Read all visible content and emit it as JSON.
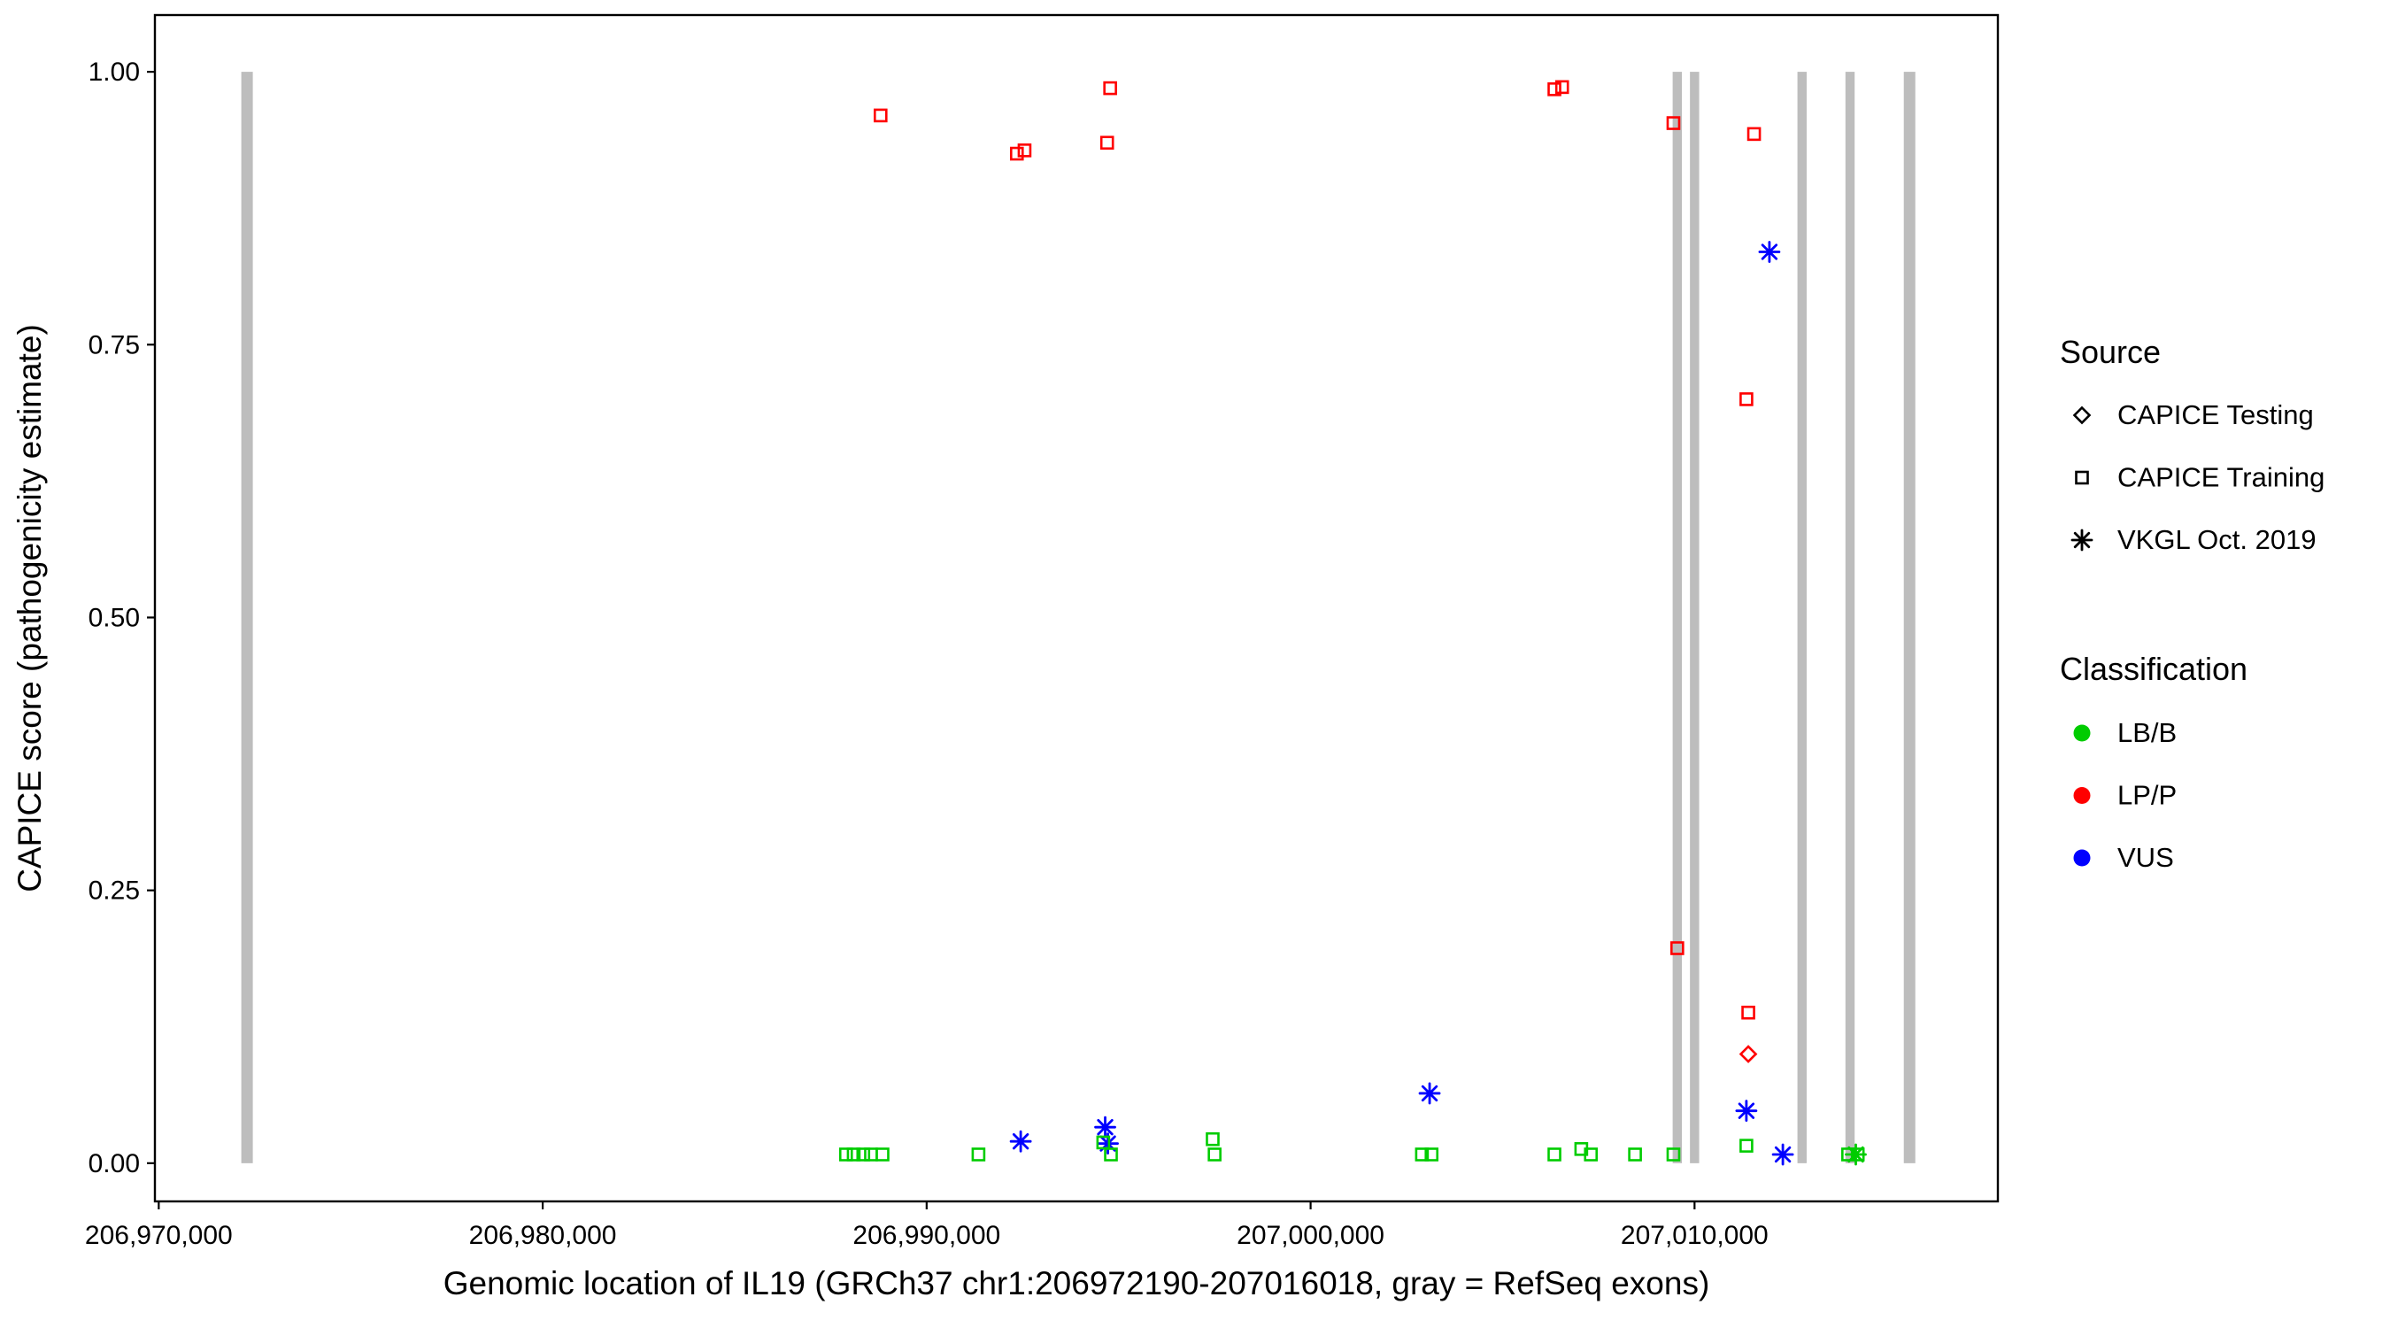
{
  "figure": {
    "background": "#ffffff"
  },
  "chart_data": {
    "type": "scatter",
    "title": "",
    "xlabel": "Genomic location of IL19 (GRCh37 chr1:206972190-207016018, gray = RefSeq exons)",
    "ylabel": "CAPICE score (pathogenicity estimate)",
    "xlim": [
      206969900,
      207017900
    ],
    "ylim": [
      -0.035,
      1.052
    ],
    "grid": false,
    "x_ticks": [
      {
        "value": 206970000,
        "label": "206,970,000"
      },
      {
        "value": 206980000,
        "label": "206,980,000"
      },
      {
        "value": 206990000,
        "label": "206,990,000"
      },
      {
        "value": 207000000,
        "label": "207,000,000"
      },
      {
        "value": 207010000,
        "label": "207,010,000"
      }
    ],
    "y_ticks": [
      {
        "value": 0.0,
        "label": "0.00"
      },
      {
        "value": 0.25,
        "label": "0.25"
      },
      {
        "value": 0.5,
        "label": "0.50"
      },
      {
        "value": 0.75,
        "label": "0.75"
      },
      {
        "value": 1.0,
        "label": "1.00"
      }
    ],
    "exon_color": "#bdbdbd",
    "exons": [
      {
        "x": 206972300,
        "width_bp": 300
      },
      {
        "x": 207009550,
        "width_bp": 240
      },
      {
        "x": 207010000,
        "width_bp": 240
      },
      {
        "x": 207012800,
        "width_bp": 240
      },
      {
        "x": 207014050,
        "width_bp": 240
      },
      {
        "x": 207015600,
        "width_bp": 300
      }
    ],
    "classification_colors": {
      "LB/B": "#00cc00",
      "LP/P": "#ff0000",
      "VUS": "#0000ff"
    },
    "source_shapes": {
      "CAPICE Testing": "diamond",
      "CAPICE Training": "square",
      "VKGL Oct. 2019": "asterisk"
    },
    "points": [
      {
        "x": 206988800,
        "y": 0.96,
        "classification": "LP/P",
        "source": "CAPICE Training"
      },
      {
        "x": 206992350,
        "y": 0.925,
        "classification": "LP/P",
        "source": "CAPICE Training"
      },
      {
        "x": 206992550,
        "y": 0.928,
        "classification": "LP/P",
        "source": "CAPICE Training"
      },
      {
        "x": 206994700,
        "y": 0.935,
        "classification": "LP/P",
        "source": "CAPICE Training"
      },
      {
        "x": 206994780,
        "y": 0.985,
        "classification": "LP/P",
        "source": "CAPICE Training"
      },
      {
        "x": 207006350,
        "y": 0.984,
        "classification": "LP/P",
        "source": "CAPICE Training"
      },
      {
        "x": 207006550,
        "y": 0.986,
        "classification": "LP/P",
        "source": "CAPICE Training"
      },
      {
        "x": 207009450,
        "y": 0.953,
        "classification": "LP/P",
        "source": "CAPICE Training"
      },
      {
        "x": 207011550,
        "y": 0.943,
        "classification": "LP/P",
        "source": "CAPICE Training"
      },
      {
        "x": 207011350,
        "y": 0.7,
        "classification": "LP/P",
        "source": "CAPICE Training"
      },
      {
        "x": 207009550,
        "y": 0.197,
        "classification": "LP/P",
        "source": "CAPICE Training"
      },
      {
        "x": 207011400,
        "y": 0.138,
        "classification": "LP/P",
        "source": "CAPICE Training"
      },
      {
        "x": 207011400,
        "y": 0.1,
        "classification": "LP/P",
        "source": "CAPICE Testing"
      },
      {
        "x": 207011950,
        "y": 0.835,
        "classification": "VUS",
        "source": "VKGL Oct. 2019"
      },
      {
        "x": 206992450,
        "y": 0.02,
        "classification": "VUS",
        "source": "VKGL Oct. 2019"
      },
      {
        "x": 206994650,
        "y": 0.033,
        "classification": "VUS",
        "source": "VKGL Oct. 2019"
      },
      {
        "x": 206994720,
        "y": 0.018,
        "classification": "VUS",
        "source": "VKGL Oct. 2019"
      },
      {
        "x": 207003100,
        "y": 0.064,
        "classification": "VUS",
        "source": "VKGL Oct. 2019"
      },
      {
        "x": 207011350,
        "y": 0.048,
        "classification": "VUS",
        "source": "VKGL Oct. 2019"
      },
      {
        "x": 207012300,
        "y": 0.008,
        "classification": "VUS",
        "source": "VKGL Oct. 2019"
      },
      {
        "x": 206987900,
        "y": 0.008,
        "classification": "LB/B",
        "source": "CAPICE Training"
      },
      {
        "x": 206988100,
        "y": 0.008,
        "classification": "LB/B",
        "source": "CAPICE Training"
      },
      {
        "x": 206988350,
        "y": 0.008,
        "classification": "LB/B",
        "source": "CAPICE Training"
      },
      {
        "x": 206988550,
        "y": 0.008,
        "classification": "LB/B",
        "source": "CAPICE Training"
      },
      {
        "x": 206988850,
        "y": 0.008,
        "classification": "LB/B",
        "source": "CAPICE Training"
      },
      {
        "x": 206991350,
        "y": 0.008,
        "classification": "LB/B",
        "source": "CAPICE Training"
      },
      {
        "x": 206994600,
        "y": 0.019,
        "classification": "LB/B",
        "source": "CAPICE Training"
      },
      {
        "x": 206994800,
        "y": 0.008,
        "classification": "LB/B",
        "source": "CAPICE Training"
      },
      {
        "x": 206997450,
        "y": 0.022,
        "classification": "LB/B",
        "source": "CAPICE Training"
      },
      {
        "x": 206997500,
        "y": 0.008,
        "classification": "LB/B",
        "source": "CAPICE Training"
      },
      {
        "x": 207002900,
        "y": 0.008,
        "classification": "LB/B",
        "source": "CAPICE Training"
      },
      {
        "x": 207003150,
        "y": 0.008,
        "classification": "LB/B",
        "source": "CAPICE Training"
      },
      {
        "x": 207006350,
        "y": 0.008,
        "classification": "LB/B",
        "source": "CAPICE Training"
      },
      {
        "x": 207007050,
        "y": 0.013,
        "classification": "LB/B",
        "source": "CAPICE Training"
      },
      {
        "x": 207007300,
        "y": 0.008,
        "classification": "LB/B",
        "source": "CAPICE Training"
      },
      {
        "x": 207008450,
        "y": 0.008,
        "classification": "LB/B",
        "source": "CAPICE Training"
      },
      {
        "x": 207009450,
        "y": 0.008,
        "classification": "LB/B",
        "source": "CAPICE Training"
      },
      {
        "x": 207011350,
        "y": 0.016,
        "classification": "LB/B",
        "source": "CAPICE Training"
      },
      {
        "x": 207014000,
        "y": 0.008,
        "classification": "LB/B",
        "source": "CAPICE Training"
      },
      {
        "x": 207014250,
        "y": 0.008,
        "classification": "LB/B",
        "source": "CAPICE Training"
      },
      {
        "x": 207014200,
        "y": 0.008,
        "classification": "LB/B",
        "source": "VKGL Oct. 2019"
      }
    ],
    "legend": {
      "source_title": "Source",
      "source_items": [
        {
          "label": "CAPICE Testing",
          "shape": "diamond"
        },
        {
          "label": "CAPICE Training",
          "shape": "square"
        },
        {
          "label": "VKGL Oct. 2019",
          "shape": "asterisk"
        }
      ],
      "classification_title": "Classification",
      "classification_items": [
        {
          "label": "LB/B",
          "color": "#00cc00"
        },
        {
          "label": "LP/P",
          "color": "#ff0000"
        },
        {
          "label": "VUS",
          "color": "#0000ff"
        }
      ]
    }
  }
}
